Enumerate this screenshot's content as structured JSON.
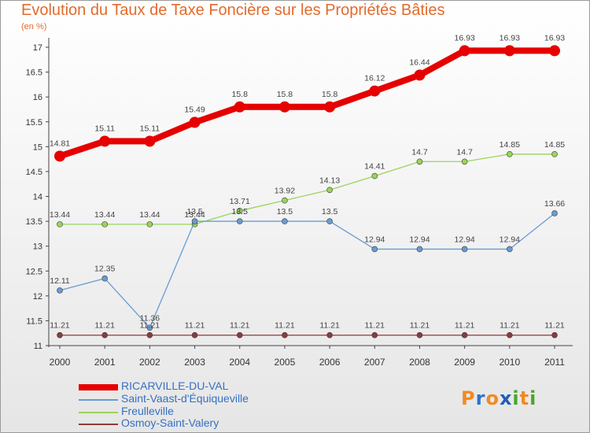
{
  "title": "Evolution du Taux de Taxe Foncière sur les Propriétés Bâties",
  "unit_label": "(en %)",
  "logo": {
    "letters": [
      "P",
      "r",
      "o",
      "x",
      "i",
      "t",
      "i"
    ],
    "colors": [
      "#f08a24",
      "#2f74c9",
      "#f08a24",
      "#1f5fb8",
      "#4aa62a",
      "#f08a24",
      "#4aa62a"
    ]
  },
  "chart_data": {
    "type": "line",
    "title": "Evolution du Taux de Taxe Foncière sur les Propriétés Bâties",
    "ylabel": "(en %)",
    "xlabel": "",
    "x": [
      "2000",
      "2001",
      "2002",
      "2003",
      "2004",
      "2005",
      "2006",
      "2007",
      "2008",
      "2009",
      "2010",
      "2011"
    ],
    "yticks": [
      "11",
      "11.5",
      "12",
      "12.5",
      "13",
      "13.5",
      "14",
      "14.5",
      "15",
      "15.5",
      "16",
      "16.5",
      "17"
    ],
    "ylim": [
      11,
      17
    ],
    "grid": false,
    "legend_placement": "bottom-left",
    "series": [
      {
        "name": "RICARVILLE-DU-VAL",
        "color": "#e60000",
        "width": 8,
        "marker_r": 7,
        "values": [
          14.81,
          15.11,
          15.11,
          15.49,
          15.8,
          15.8,
          15.8,
          16.12,
          16.44,
          16.93,
          16.93,
          16.93
        ],
        "labels": [
          "14.81",
          "15.11",
          "15.11",
          "15.49",
          "15.8",
          "15.8",
          "15.8",
          "16.12",
          "16.44",
          "16.93",
          "16.93",
          "16.93"
        ]
      },
      {
        "name": "Saint-Vaast-d'Équiqueville",
        "color": "#6a9bd1",
        "width": 1.3,
        "marker_r": 3.5,
        "values": [
          12.11,
          12.35,
          11.36,
          13.5,
          13.5,
          13.5,
          13.5,
          12.94,
          12.94,
          12.94,
          12.94,
          13.66
        ],
        "labels": [
          "12.11",
          "12.35",
          "11.36",
          "13.5",
          "13.5",
          "13.5",
          "13.5",
          "12.94",
          "12.94",
          "12.94",
          "12.94",
          "13.66"
        ]
      },
      {
        "name": "Freulleville",
        "color": "#9ad45a",
        "width": 1.3,
        "marker_r": 3.5,
        "values": [
          13.44,
          13.44,
          13.44,
          13.44,
          13.71,
          13.92,
          14.13,
          14.41,
          14.7,
          14.7,
          14.85,
          14.85
        ],
        "labels": [
          "13.44",
          "13.44",
          "13.44",
          "13.44",
          "13.71",
          "13.92",
          "14.13",
          "14.41",
          "14.7",
          "14.7",
          "14.85",
          "14.85"
        ]
      },
      {
        "name": "Osmoy-Saint-Valery",
        "color": "#8c3b3b",
        "width": 1.3,
        "marker_r": 3.5,
        "values": [
          11.21,
          11.21,
          11.21,
          11.21,
          11.21,
          11.21,
          11.21,
          11.21,
          11.21,
          11.21,
          11.21,
          11.21
        ],
        "labels": [
          "11.21",
          "11.21",
          "11.21",
          "11.21",
          "11.21",
          "11.21",
          "11.21",
          "11.21",
          "11.21",
          "11.21",
          "11.21",
          "11.21"
        ]
      }
    ]
  }
}
